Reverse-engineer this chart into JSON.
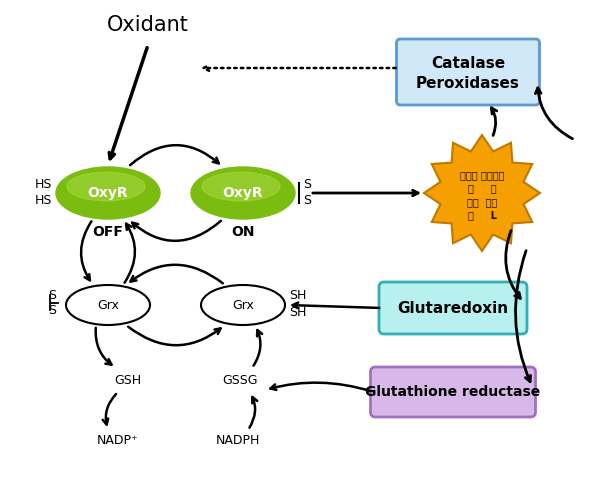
{
  "bg_color": "#ffffff",
  "oxidant_text": "Oxidant",
  "catalase_line1": "Catalase",
  "catalase_line2": "Peroxidases",
  "catalase_box_color": "#d0e8f8",
  "catalase_box_edge": "#5b9bd5",
  "oxyr_color": "#8fce00",
  "oxyr_highlight": "#b8e05a",
  "off_text": "OFF",
  "on_text": "ON",
  "glutaredoxin_text": "Glutaredoxin",
  "glutaredoxin_box_color": "#b8f0f0",
  "glutaredoxin_box_edge": "#30b0b0",
  "glutathione_text": "Glutathione reductase",
  "glutathione_box_color": "#d8b8e8",
  "glutathione_box_edge": "#a070c0",
  "antioxidant_color": "#f5a000",
  "antioxidant_edge": "#c07800",
  "korean_line1": "항산화 효소들의",
  "korean_line2": "상     현",
  "korean_line3": "발현  유도",
  "korean_line4": "단     L",
  "gsh_text": "GSH",
  "gssg_text": "GSSG",
  "nadp_text": "NADP⁺",
  "nadph_text": "NADPH",
  "arrow_color": "black",
  "arrow_lw": 1.8
}
